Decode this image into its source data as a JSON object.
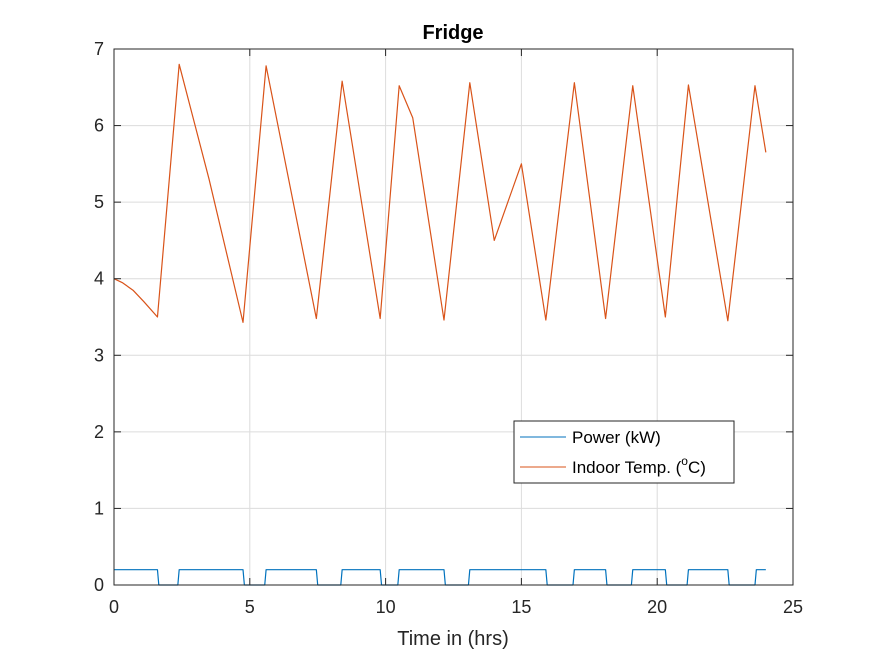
{
  "chart_data": {
    "type": "line",
    "title": "Fridge",
    "xlabel": "Time in (hrs)",
    "ylabel": "",
    "xlim": [
      0,
      25
    ],
    "ylim": [
      0,
      7
    ],
    "xticks": [
      0,
      5,
      10,
      15,
      20,
      25
    ],
    "yticks": [
      0,
      1,
      2,
      3,
      4,
      5,
      6,
      7
    ],
    "grid": true,
    "legend_position": "lower-right",
    "legend": {
      "power_label": "Power (kW)",
      "temp_label_prefix": "Indoor Temp. (",
      "temp_label_sup": "o",
      "temp_label_suffix": "C)"
    },
    "series": [
      {
        "name": "Power (kW)",
        "color": "#0072BD",
        "x": [
          0,
          1.6,
          1.65,
          2.35,
          2.4,
          4.75,
          4.8,
          5.55,
          5.6,
          7.45,
          7.5,
          8.35,
          8.4,
          9.8,
          9.85,
          10.45,
          10.5,
          12.15,
          12.2,
          13.05,
          13.1,
          15.9,
          15.95,
          16.9,
          16.95,
          18.1,
          18.15,
          19.05,
          19.1,
          20.3,
          20.35,
          21.1,
          21.15,
          22.6,
          22.65,
          23.6,
          23.65,
          24.0
        ],
        "values": [
          0.2,
          0.2,
          0,
          0,
          0.2,
          0.2,
          0,
          0,
          0.2,
          0.2,
          0,
          0,
          0.2,
          0.2,
          0,
          0,
          0.2,
          0.2,
          0,
          0,
          0.2,
          0.2,
          0,
          0,
          0.2,
          0.2,
          0,
          0,
          0.2,
          0.2,
          0,
          0,
          0.2,
          0.2,
          0,
          0,
          0.2,
          0.2
        ]
      },
      {
        "name": "Indoor Temp. (oC)",
        "color": "#D95319",
        "x": [
          0,
          0.3,
          0.7,
          1.1,
          1.6,
          2.4,
          3.5,
          4.75,
          5.6,
          7.45,
          8.4,
          9.8,
          10.5,
          11.0,
          12.15,
          13.1,
          14.0,
          15.0,
          15.9,
          16.95,
          18.1,
          19.1,
          20.3,
          21.15,
          22.6,
          23.6,
          24.0
        ],
        "values": [
          4.0,
          3.95,
          3.85,
          3.7,
          3.5,
          6.8,
          5.3,
          3.43,
          6.78,
          3.48,
          6.58,
          3.48,
          6.52,
          6.1,
          3.46,
          6.56,
          4.5,
          5.5,
          3.46,
          6.56,
          3.48,
          6.52,
          3.5,
          6.53,
          3.45,
          6.52,
          5.65
        ]
      }
    ]
  }
}
